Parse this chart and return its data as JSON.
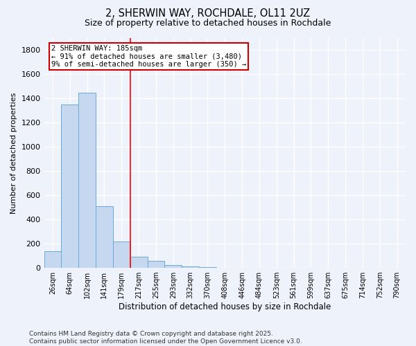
{
  "title1": "2, SHERWIN WAY, ROCHDALE, OL11 2UZ",
  "title2": "Size of property relative to detached houses in Rochdale",
  "xlabel": "Distribution of detached houses by size in Rochdale",
  "ylabel": "Number of detached properties",
  "categories": [
    "26sqm",
    "64sqm",
    "102sqm",
    "141sqm",
    "179sqm",
    "217sqm",
    "255sqm",
    "293sqm",
    "332sqm",
    "370sqm",
    "408sqm",
    "446sqm",
    "484sqm",
    "523sqm",
    "561sqm",
    "599sqm",
    "637sqm",
    "675sqm",
    "714sqm",
    "752sqm",
    "790sqm"
  ],
  "values": [
    140,
    1350,
    1450,
    510,
    220,
    90,
    55,
    25,
    12,
    5,
    2,
    0,
    0,
    0,
    0,
    0,
    0,
    0,
    0,
    0,
    0
  ],
  "bar_color": "#c5d8f0",
  "bar_edge_color": "#6aaad4",
  "red_line_x": 4.5,
  "annotation_title": "2 SHERWIN WAY: 185sqm",
  "annotation_line1": "← 91% of detached houses are smaller (3,480)",
  "annotation_line2": "9% of semi-detached houses are larger (350) →",
  "annotation_box_color": "#ffffff",
  "annotation_box_edge": "#cc0000",
  "ylim": [
    0,
    1900
  ],
  "yticks": [
    0,
    200,
    400,
    600,
    800,
    1000,
    1200,
    1400,
    1600,
    1800
  ],
  "footer1": "Contains HM Land Registry data © Crown copyright and database right 2025.",
  "footer2": "Contains public sector information licensed under the Open Government Licence v3.0.",
  "bg_color": "#eef2fb",
  "plot_bg_color": "#eef2fb",
  "grid_color": "#ffffff"
}
